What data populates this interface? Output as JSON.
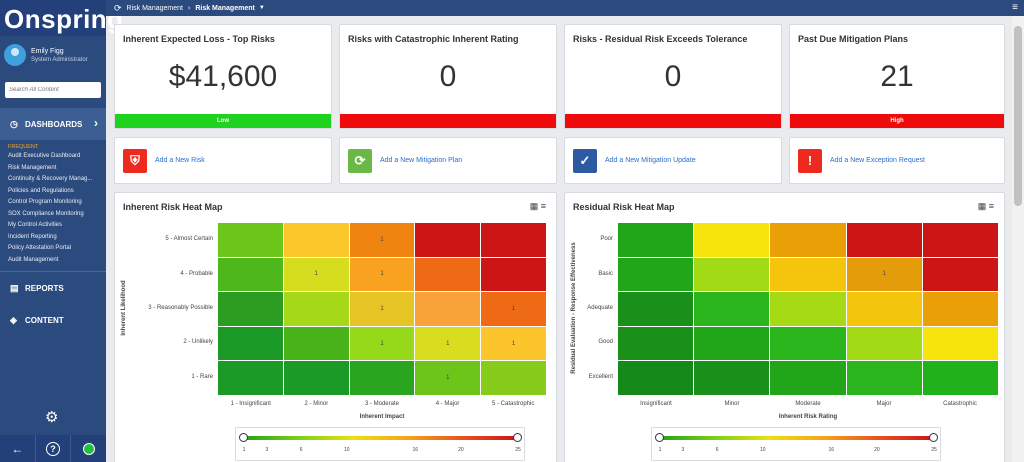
{
  "app": {
    "logo": "Onspring"
  },
  "user": {
    "name": "Emily Figg",
    "role": "System Administrator"
  },
  "search": {
    "placeholder": "Search All Content"
  },
  "nav": {
    "dashboards": "DASHBOARDS",
    "frequent": "FREQUENT",
    "items": [
      "Audit Executive Dashboard",
      "Risk Management",
      "Continuity & Recovery Manag...",
      "Policies and Regulations",
      "Control Program Monitoring",
      "SOX Compliance Monitoring",
      "My Control Activities",
      "Incident Reporting",
      "Policy Attestation Portal",
      "Audit Management"
    ],
    "reports": "REPORTS",
    "content": "CONTENT"
  },
  "breadcrumb": {
    "root": "Risk Management",
    "current": "Risk Management"
  },
  "kpis": [
    {
      "title": "Inherent Expected Loss - Top Risks",
      "value": "$41,600",
      "status": "Low",
      "color": "#1ed31e"
    },
    {
      "title": "Risks with Catastrophic Inherent Rating",
      "value": "0",
      "status": "",
      "color": "#ee0b0b"
    },
    {
      "title": "Risks - Residual Risk Exceeds Tolerance",
      "value": "0",
      "status": "",
      "color": "#ee0b0b"
    },
    {
      "title": "Past Due Mitigation Plans",
      "value": "21",
      "status": "High",
      "color": "#ee0b0b"
    }
  ],
  "actions": [
    {
      "label": "Add a New Risk",
      "icon": "shield-icon",
      "color": "#ee2a1f"
    },
    {
      "label": "Add a New Mitigation Plan",
      "icon": "refresh-icon",
      "color": "#6ab845"
    },
    {
      "label": "Add a New Mitigation Update",
      "icon": "checklist-icon",
      "color": "#2e5aa3"
    },
    {
      "label": "Add a New Exception Request",
      "icon": "alert-shield-icon",
      "color": "#ee2a1f"
    }
  ],
  "heatmaps": {
    "inherent": {
      "title": "Inherent Risk Heat Map",
      "rows": [
        "5 - Almost Certain",
        "4 - Probable",
        "3 - Reasonably Possible",
        "2 - Unlikely",
        "1 - Rare"
      ],
      "cols": [
        "1 - Insignificant",
        "2 - Minor",
        "3 - Moderate",
        "4 - Major",
        "5 - Catastrophic"
      ],
      "xlabel": "Inherent Impact",
      "ylabel": "Inherent Likelihood",
      "colors": [
        [
          "#6ec51a",
          "#fcc72b",
          "#f08411",
          "#cc1515",
          "#cc1515"
        ],
        [
          "#4cb81c",
          "#d6dc1e",
          "#f8a220",
          "#ef6a14",
          "#cc1515"
        ],
        [
          "#2b9e21",
          "#a6d81a",
          "#e7c425",
          "#f8a23a",
          "#ef6a14"
        ],
        [
          "#1c9a28",
          "#49b31a",
          "#96d81a",
          "#d8de1d",
          "#fbc52b"
        ],
        [
          "#1c9a28",
          "#1c9a28",
          "#29a520",
          "#6ec51a",
          "#88cc1b"
        ]
      ],
      "values": [
        [
          "",
          "",
          "1",
          "",
          ""
        ],
        [
          "",
          "1",
          "1",
          "",
          ""
        ],
        [
          "",
          "",
          "1",
          "",
          "1"
        ],
        [
          "",
          "",
          "1",
          "1",
          "1"
        ],
        [
          "",
          "",
          "",
          "1",
          ""
        ]
      ]
    },
    "residual": {
      "title": "Residual Risk Heat Map",
      "rows": [
        "Poor",
        "Basic",
        "Adequate",
        "Good",
        "Excellent"
      ],
      "cols": [
        "Insignificant",
        "Minor",
        "Moderate",
        "Major",
        "Catastrophic"
      ],
      "xlabel": "Inherent Risk Rating",
      "ylabel": "Residual Evaluation - Response Effectiveness",
      "colors": [
        [
          "#21a519",
          "#f8e40d",
          "#e9a006",
          "#cc1515",
          "#cc1515"
        ],
        [
          "#21a519",
          "#a3da16",
          "#f5c40d",
          "#e59c0a",
          "#cc1515"
        ],
        [
          "#18901a",
          "#2ab51d",
          "#a5da14",
          "#f3c50c",
          "#e9a006"
        ],
        [
          "#18901a",
          "#21a519",
          "#2ab51d",
          "#a3da16",
          "#f8e40d"
        ],
        [
          "#15891a",
          "#18901a",
          "#21a519",
          "#2ab51d",
          "#21b11a"
        ]
      ],
      "values": [
        [
          "",
          "",
          "",
          "",
          ""
        ],
        [
          "",
          "",
          "",
          "1",
          ""
        ],
        [
          "",
          "",
          "",
          "",
          ""
        ],
        [
          "",
          "",
          "",
          "",
          ""
        ],
        [
          "",
          "",
          "",
          "",
          ""
        ]
      ]
    }
  },
  "legend_ticks": [
    "1",
    "3",
    "6",
    "10",
    "16",
    "20",
    "25"
  ]
}
